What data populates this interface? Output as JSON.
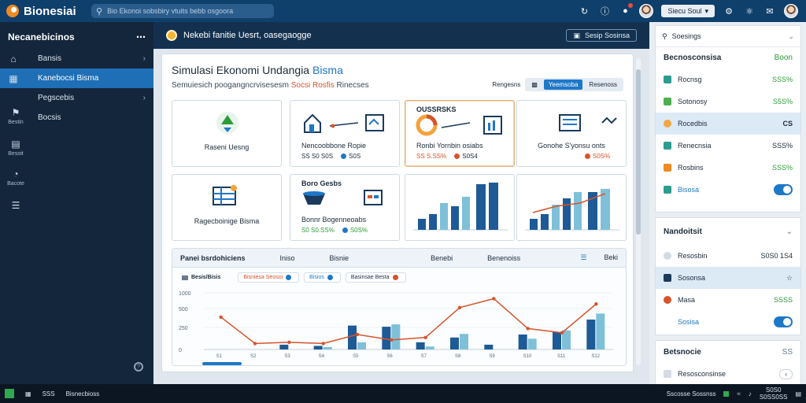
{
  "app": {
    "brand": "Bionesiai",
    "search_placeholder": "Bio Ekonoi sobsbiry vtuits bebb osgoora",
    "user_label": "Siecu Soul"
  },
  "sidebar": {
    "title": "Necanebicinos",
    "items": [
      {
        "label": "Bansis",
        "icon": "home-icon",
        "chevron": "›"
      },
      {
        "label": "Kanebocsi Bisma",
        "icon": "grid-icon",
        "active": true
      },
      {
        "label": "Pegscebis",
        "icon": "chart-icon",
        "chevron": "›"
      },
      {
        "label": "Bocsis",
        "icon": "document-icon"
      }
    ],
    "small_items": [
      {
        "label": "Bestin",
        "icon": "tag-icon"
      },
      {
        "label": "Besoit",
        "icon": "clipboard-icon"
      },
      {
        "label": "Bacote",
        "icon": "gauge-icon"
      },
      {
        "label": "",
        "icon": "list-icon"
      }
    ]
  },
  "main": {
    "header_title": "Nekebi fanitie Uesrt, oasegaogge",
    "header_button": "Sesip Sosinsa",
    "panel_title_a": "Simulasi Ekonomi Undangia",
    "panel_title_b": "Bisma",
    "subtitle_a": "Semuiesich poogangncrvisesesm",
    "subtitle_b": "Socsi Rosfis",
    "subtitle_c": "Rinecses",
    "controls_label": "Rengesns",
    "seg_on": "Yeemsoba",
    "seg_off": "Resenoss",
    "cards": [
      {
        "label": "Raseni Uesng",
        "icon": "recycle-icon"
      },
      {
        "label": "Nencoobbone Ropie",
        "v1": "SS S0 S0S",
        "v2": "S0S",
        "icon": "house-icon"
      },
      {
        "title": "OUSSRSKS",
        "label": "Ronbi Yornbin osiabs",
        "v1": "SS S.SS%",
        "v2": "S0S4",
        "icon": "donut-chart-icon",
        "highlighted": true
      },
      {
        "label": "Gonohe S'yonsu onts",
        "v2": "S0S%",
        "icon": "briefcase-icon"
      },
      {
        "label": "Ragecboinige Bisma",
        "icon": "spreadsheet-icon"
      },
      {
        "title": "Boro Gesbs",
        "label": "Bonnr Bogenneoabs",
        "v1": "S0 S0.SS%",
        "v2": "S0S%",
        "icon": "bowl-icon"
      }
    ],
    "chart": {
      "head_left": "Panei bsrdohiciens",
      "head_mid1": "Iniso",
      "head_mid2": "Bisnie",
      "head_mid3": "Benebi",
      "head_mid4": "Benenoiss",
      "head_right": "Beki",
      "legend_title": "Besis/Bisis",
      "legend": [
        "Bisniesa Seosoi",
        "Bisios",
        "Basinsae Besta"
      ]
    }
  },
  "right": {
    "search": "Soesings",
    "section1_title": "Becnosconsisa",
    "section1_title_val": "Boon",
    "rows": [
      {
        "label": "Rocnsg",
        "val": "SSS%",
        "color": "#2a9d8f"
      },
      {
        "label": "Sotonosy",
        "val": "S5S%",
        "color": "#4caf50"
      },
      {
        "label": "Rocedbis",
        "val": "CS",
        "color": "#f4a640",
        "selected": true
      },
      {
        "label": "Renecnsia",
        "val": "SSS%",
        "color": "#2a9d8f"
      },
      {
        "label": "Rosbins",
        "val": "SSS%",
        "color": "#f08a24"
      }
    ],
    "toggle1_label": "Bisosa",
    "section2_title": "Nandoitsit",
    "rows2": [
      {
        "label": "Resosbin",
        "val": "S0S0 1S4"
      },
      {
        "label": "Sosonsa",
        "val": "☆",
        "selected": true
      },
      {
        "label": "Masa",
        "val": "SSSS"
      }
    ],
    "toggle2_label": "Sosisa",
    "section3_title": "Betsnocie",
    "section3_val": "SS",
    "row3_label": "Resosconsinse",
    "row3_pill": "‹"
  },
  "taskbar": {
    "item1": "SSS",
    "item2": "Bisnecbioss",
    "tray_text": "Sscosse Sossnss",
    "clock_time": "S0S0",
    "clock_date": "S0SS0SS"
  },
  "chart_data": {
    "type": "bar",
    "title": "",
    "ylabel": "",
    "ylim": [
      0,
      1000
    ],
    "yticks": [
      "1000",
      "500",
      "250",
      "0"
    ],
    "categories": [
      "S1",
      "S2",
      "S3",
      "S4",
      "S5",
      "S6",
      "S7",
      "S8",
      "S9",
      "S10",
      "S11",
      "S12"
    ],
    "series": [
      {
        "name": "Bisniesa Seosoi",
        "values": [
          0,
          0,
          80,
          60,
          400,
          380,
          120,
          200,
          80,
          250,
          290,
          500
        ]
      },
      {
        "name": "Bisios",
        "values": [
          0,
          0,
          0,
          40,
          120,
          420,
          50,
          260,
          0,
          180,
          320,
          600
        ]
      },
      {
        "name": "Basinsae Besta",
        "values": [
          540,
          100,
          120,
          100,
          250,
          160,
          200,
          700,
          850,
          350,
          280,
          760
        ]
      }
    ]
  }
}
